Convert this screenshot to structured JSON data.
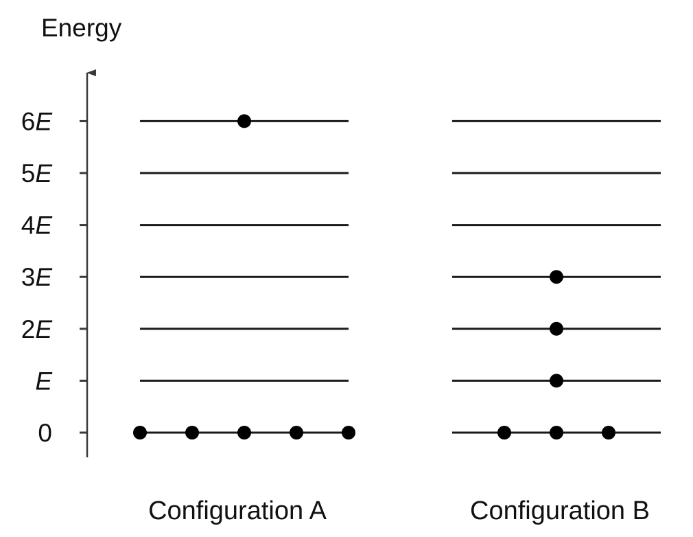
{
  "axis": {
    "title": "Energy",
    "levels": [
      {
        "value": 0,
        "coef": "0",
        "var": ""
      },
      {
        "value": 1,
        "coef": "",
        "var": "E"
      },
      {
        "value": 2,
        "coef": "2",
        "var": "E"
      },
      {
        "value": 3,
        "coef": "3",
        "var": "E"
      },
      {
        "value": 4,
        "coef": "4",
        "var": "E"
      },
      {
        "value": 5,
        "coef": "5",
        "var": "E"
      },
      {
        "value": 6,
        "coef": "6",
        "var": "E"
      }
    ]
  },
  "configurations": [
    {
      "id": "a",
      "label": "Configuration A",
      "particles_per_level": [
        5,
        0,
        0,
        0,
        0,
        0,
        1
      ]
    },
    {
      "id": "b",
      "label": "Configuration B",
      "particles_per_level": [
        3,
        1,
        1,
        1,
        0,
        0,
        0
      ]
    }
  ],
  "colors": {
    "lines": "#1a1a1a",
    "particles": "#000000",
    "axis": "#3a3a3a"
  }
}
